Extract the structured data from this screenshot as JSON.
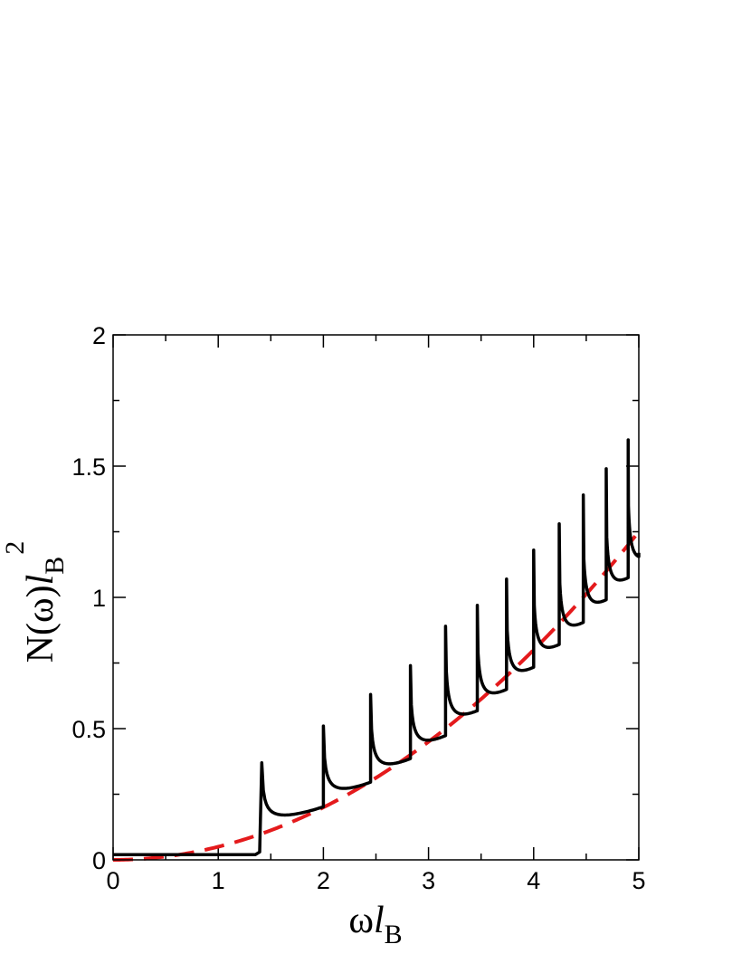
{
  "chart_data": {
    "type": "line",
    "xlabel": {
      "main": "ω",
      "italic": "l",
      "sub": "B"
    },
    "ylabel": {
      "main": "N(ω)",
      "italic": "l",
      "sub": "B",
      "sup": "2"
    },
    "xlim": [
      0,
      5
    ],
    "ylim": [
      0,
      2
    ],
    "x_ticks": [
      {
        "value": 0,
        "label": "0"
      },
      {
        "value": 1,
        "label": "1"
      },
      {
        "value": 2,
        "label": "2"
      },
      {
        "value": 3,
        "label": "3"
      },
      {
        "value": 4,
        "label": "4"
      },
      {
        "value": 5,
        "label": "5"
      }
    ],
    "y_ticks": [
      {
        "value": 0,
        "label": "0"
      },
      {
        "value": 0.5,
        "label": "0.5"
      },
      {
        "value": 1,
        "label": "1"
      },
      {
        "value": 1.5,
        "label": "1.5"
      },
      {
        "value": 2,
        "label": "2"
      }
    ],
    "grid": false,
    "series": [
      {
        "color": "#000000",
        "style": "solid",
        "baseline": 0.02,
        "peaks": [
          {
            "x": 1.414,
            "y": 0.37
          },
          {
            "x": 2.0,
            "y": 0.51
          },
          {
            "x": 2.449,
            "y": 0.63
          },
          {
            "x": 2.828,
            "y": 0.74
          },
          {
            "x": 3.162,
            "y": 0.89
          },
          {
            "x": 3.464,
            "y": 0.97
          },
          {
            "x": 3.742,
            "y": 1.07
          },
          {
            "x": 4.0,
            "y": 1.18
          },
          {
            "x": 4.243,
            "y": 1.28
          },
          {
            "x": 4.472,
            "y": 1.39
          },
          {
            "x": 4.69,
            "y": 1.49
          },
          {
            "x": 4.899,
            "y": 1.6
          }
        ],
        "end": {
          "x": 5.0,
          "y": 1.17
        }
      },
      {
        "color": "#e41a1c",
        "style": "dashed",
        "function": "y = x^2 / 20",
        "points": [
          [
            0,
            0
          ],
          [
            0.5,
            0.0125
          ],
          [
            1,
            0.05
          ],
          [
            1.5,
            0.1125
          ],
          [
            2,
            0.2
          ],
          [
            2.5,
            0.3125
          ],
          [
            3,
            0.45
          ],
          [
            3.5,
            0.6125
          ],
          [
            4,
            0.8
          ],
          [
            4.5,
            1.0125
          ],
          [
            5,
            1.25
          ]
        ]
      }
    ]
  }
}
